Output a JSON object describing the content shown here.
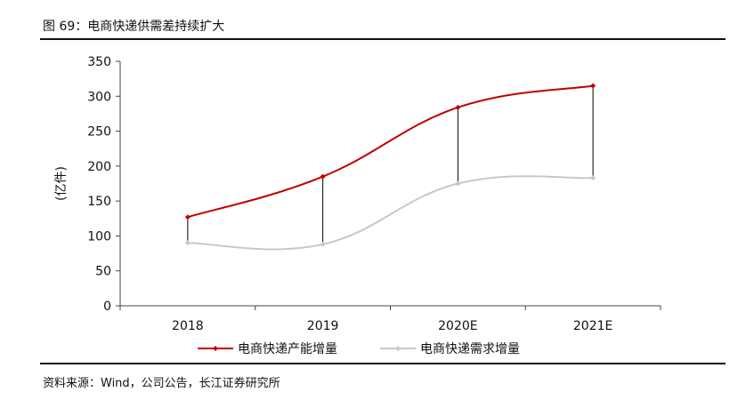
{
  "figure": {
    "title": "图 69：电商快递供需差持续扩大",
    "source": "资料来源：Wind，公司公告，长江证券研究所"
  },
  "chart_data": {
    "type": "line",
    "categories": [
      "2018",
      "2019",
      "2020E",
      "2021E"
    ],
    "ylabel": "(亿件)",
    "ylim": [
      0,
      350
    ],
    "yticks": [
      0,
      50,
      100,
      150,
      200,
      250,
      300,
      350
    ],
    "grid": false,
    "legend_position": "bottom",
    "series": [
      {
        "name": "电商快递产能增量",
        "values": [
          127,
          185,
          284,
          315
        ],
        "color": "#c00000",
        "marker": "diamond"
      },
      {
        "name": "电商快递需求增量",
        "values": [
          90,
          88,
          175,
          183
        ],
        "color": "#c8c8c8",
        "marker": "diamond"
      }
    ],
    "annotations": {
      "gap_connectors": true,
      "connector_color": "#000000"
    }
  }
}
